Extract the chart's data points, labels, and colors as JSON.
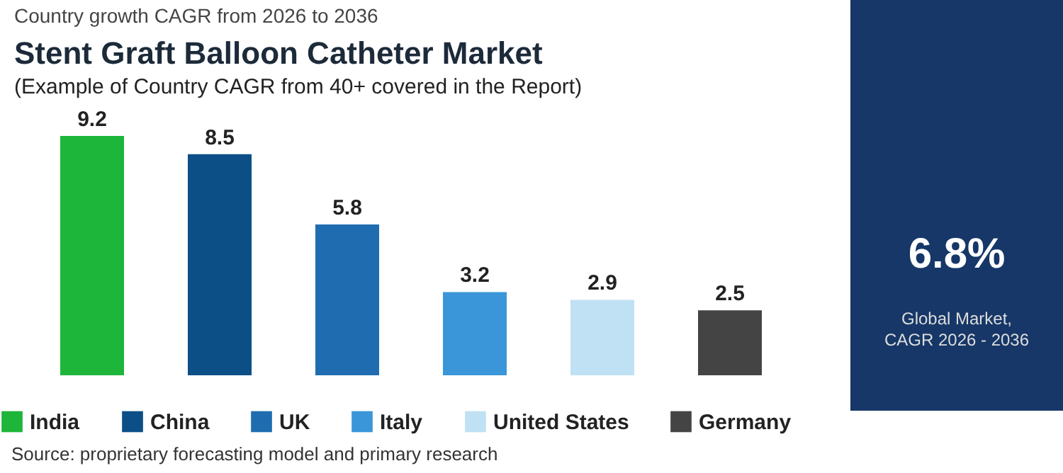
{
  "chart_data": {
    "type": "bar",
    "title": "Stent Graft Balloon Catheter Market",
    "subtitle": "(Example of Country CAGR from 40+ covered in the Report)",
    "categories": [
      null,
      null,
      null,
      null,
      null,
      null
    ],
    "series": [
      {
        "name": "India",
        "color": "#1db53a",
        "values": [
          9.2,
          null,
          null,
          null,
          null,
          null
        ]
      },
      {
        "name": "China",
        "color": "#0c4f87",
        "values": [
          null,
          8.5,
          null,
          null,
          null,
          null
        ]
      },
      {
        "name": "UK",
        "color": "#1f6db0",
        "values": [
          null,
          null,
          5.8,
          null,
          null,
          null
        ]
      },
      {
        "name": "Italy",
        "color": "#3a96d8",
        "values": [
          null,
          null,
          null,
          3.2,
          null,
          null
        ]
      },
      {
        "name": "United States",
        "color": "#c0e1f3",
        "values": [
          null,
          null,
          null,
          null,
          2.9,
          null
        ]
      },
      {
        "name": "Germany",
        "color": "#444444",
        "values": [
          null,
          null,
          null,
          null,
          null,
          2.5
        ]
      }
    ],
    "stacked": true,
    "data_labels": true,
    "legend": "bottom",
    "annotations": [
      "Country growth CAGR from 2026 to 2036",
      "6.8%",
      "Global Market,",
      "CAGR 2026 - 2036",
      "Source: proprietary forecasting model and primary research"
    ]
  }
}
